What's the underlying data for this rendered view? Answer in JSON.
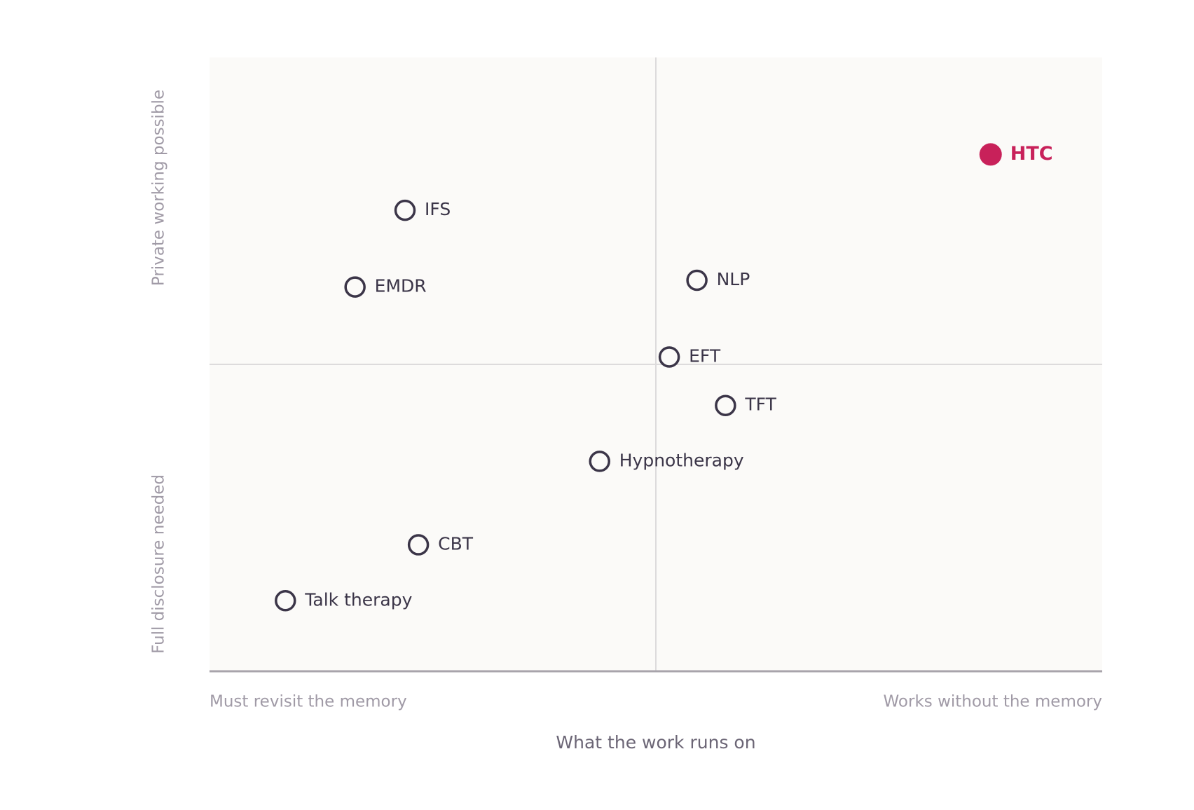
{
  "chart_data": {
    "type": "scatter",
    "x_label": "What the work runs on",
    "x_low_label": "Must revisit the memory",
    "x_high_label": "Works without the memory",
    "y_high_label": "Private working possible",
    "y_low_label": "Full disclosure needed",
    "xlim": [
      0,
      100
    ],
    "ylim": [
      0,
      100
    ],
    "quadrant_lines": true,
    "points": [
      {
        "label": "HTC",
        "x": 87.5,
        "y": 84.2,
        "color": "#c8215a",
        "filled": true
      },
      {
        "label": "IFS",
        "x": 21.9,
        "y": 75.1,
        "color": "#3b3548",
        "filled": false
      },
      {
        "label": "EMDR",
        "x": 16.3,
        "y": 62.6,
        "color": "#3b3548",
        "filled": false
      },
      {
        "label": "NLP",
        "x": 54.6,
        "y": 63.7,
        "color": "#3b3548",
        "filled": false
      },
      {
        "label": "EFT",
        "x": 51.5,
        "y": 51.2,
        "color": "#3b3548",
        "filled": false
      },
      {
        "label": "TFT",
        "x": 57.8,
        "y": 43.3,
        "color": "#3b3548",
        "filled": false
      },
      {
        "label": "Hypnotherapy",
        "x": 43.7,
        "y": 34.2,
        "color": "#3b3548",
        "filled": false
      },
      {
        "label": "CBT",
        "x": 23.4,
        "y": 20.6,
        "color": "#3b3548",
        "filled": false
      },
      {
        "label": "Talk therapy",
        "x": 8.5,
        "y": 11.5,
        "color": "#3b3548",
        "filled": false
      }
    ]
  }
}
